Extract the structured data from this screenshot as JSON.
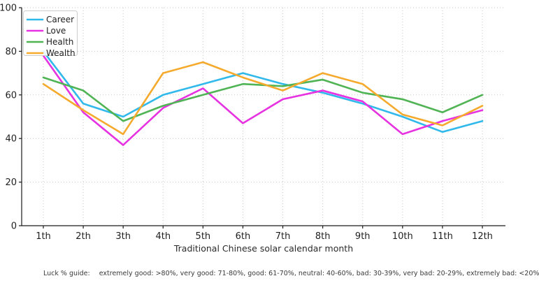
{
  "chart_data": {
    "type": "line",
    "title": "",
    "xlabel": "Traditional Chinese solar calendar month",
    "ylabel": "",
    "ylim": [
      0,
      100
    ],
    "yticks": [
      0,
      20,
      40,
      60,
      80,
      100
    ],
    "grid": true,
    "legend_position": "upper-left",
    "categories": [
      "1th",
      "2th",
      "3th",
      "4th",
      "5th",
      "6th",
      "7th",
      "8th",
      "9th",
      "10th",
      "11th",
      "12th"
    ],
    "series": [
      {
        "name": "Career",
        "color": "#32B9EB",
        "values": [
          80,
          56,
          50,
          60,
          65,
          70,
          65,
          61,
          56,
          50,
          43,
          48
        ]
      },
      {
        "name": "Love",
        "color": "#E632E1",
        "values": [
          78,
          52,
          37,
          54,
          63,
          47,
          58,
          62,
          57,
          42,
          48,
          53
        ]
      },
      {
        "name": "Health",
        "color": "#50B455",
        "values": [
          68,
          62,
          48,
          55,
          60,
          65,
          64,
          67,
          61,
          58,
          52,
          60
        ]
      },
      {
        "name": "Wealth",
        "color": "#F5AA2D",
        "values": [
          65,
          53,
          42,
          70,
          75,
          68,
          62,
          70,
          65,
          51,
          46,
          55
        ]
      }
    ]
  },
  "footer": {
    "label": "Luck % guide:",
    "text": "extremely good: >80%, very good: 71-80%, good: 61-70%, neutral: 40-60%, bad: 30-39%, very bad: 20-29%, extremely bad: <20%"
  },
  "style": {
    "grid_color": "#c8c8c8",
    "axis_color": "#1a1a1a",
    "tick_label_color": "#1f1f1f",
    "legend_border_color": "#cccccc",
    "background": "#ffffff"
  }
}
